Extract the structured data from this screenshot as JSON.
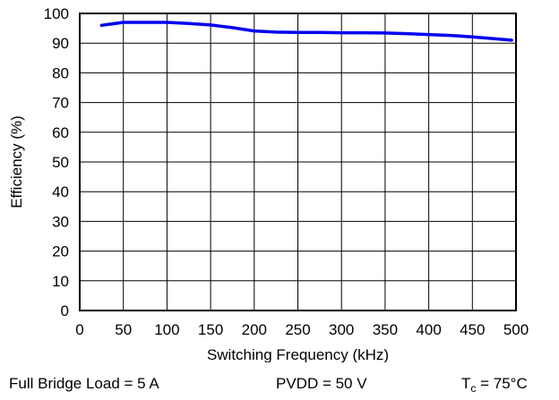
{
  "chart_data": {
    "type": "line",
    "xlabel": "Switching Frequency (kHz)",
    "ylabel": "Efficiency (%)",
    "xlim": [
      0,
      500
    ],
    "ylim": [
      0,
      100
    ],
    "xticks": [
      0,
      50,
      100,
      150,
      200,
      250,
      300,
      350,
      400,
      450,
      500
    ],
    "yticks": [
      0,
      10,
      20,
      30,
      40,
      50,
      60,
      70,
      80,
      90,
      100
    ],
    "grid": true,
    "series": [
      {
        "color": "#0000ee",
        "x": [
          25,
          50,
          75,
          100,
          125,
          150,
          175,
          200,
          225,
          250,
          275,
          300,
          325,
          350,
          375,
          400,
          425,
          450,
          475,
          495
        ],
        "y": [
          96,
          97,
          97,
          97,
          96.6,
          96.1,
          95.2,
          94.1,
          93.7,
          93.6,
          93.6,
          93.5,
          93.5,
          93.4,
          93.2,
          92.9,
          92.6,
          92.1,
          91.5,
          91
        ]
      }
    ]
  },
  "footer": {
    "load": "Full Bridge Load = 5 A",
    "pvdd": "PVDD = 50 V",
    "tc_prefix": "T",
    "tc_sub": "c",
    "tc_value": " = 75°C"
  }
}
